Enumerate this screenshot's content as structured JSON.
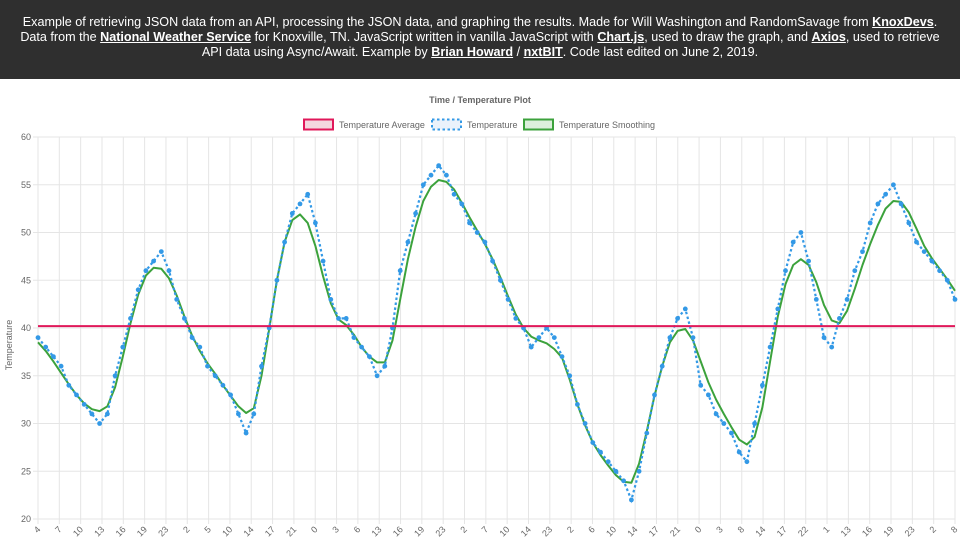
{
  "banner": {
    "t1": "Example of retrieving JSON data from an API, processing the JSON data, and graphing the results. Made for Will Washington and RandomSavage from ",
    "knoxdevs": "KnoxDevs",
    "t2": ". Data from the ",
    "nws": "National Weather Service",
    "t3": " for Knoxville, TN. JavaScript written in vanilla JavaScript with ",
    "chartjs": "Chart.js",
    "t4": ", used to draw the graph, and ",
    "axios": "Axios",
    "t5": ", used to retrieve API data using Async/Await. Example by ",
    "brian": "Brian Howard",
    "sep": " / ",
    "nxtbit": "nxtBIT",
    "t6": ". Code last edited on June 2, 2019."
  },
  "colors": {
    "average": "#e0185a",
    "temperature": "#3399e6",
    "smoothing": "#3ca23c",
    "grid": "#e5e5e5",
    "text": "#666666"
  },
  "chart_data": {
    "type": "line",
    "title": "Time / Temperature Plot",
    "ylabel": "Temperature",
    "xlabel": "",
    "ylim": [
      20,
      60
    ],
    "yticks": [
      20,
      25,
      30,
      35,
      40,
      45,
      50,
      55,
      60
    ],
    "grid": true,
    "legend_position": "top",
    "x_tick_labels": [
      "4",
      "7",
      "10",
      "13",
      "16",
      "19",
      "23",
      "2",
      "5",
      "10",
      "14",
      "17",
      "21",
      "0",
      "3",
      "6",
      "13",
      "16",
      "19",
      "23",
      "2",
      "7",
      "10",
      "14",
      "23",
      "2",
      "6",
      "10",
      "14",
      "17",
      "21",
      "0",
      "3",
      "8",
      "14",
      "17",
      "22",
      "1",
      "13",
      "16",
      "19",
      "23",
      "2",
      "8"
    ],
    "series": [
      {
        "name": "Temperature Average",
        "style": "solid",
        "values": [
          40.2,
          40.2
        ]
      },
      {
        "name": "Temperature",
        "style": "dotted",
        "values": [
          39,
          38,
          37,
          36,
          34,
          33,
          32,
          31,
          30,
          31,
          35,
          38,
          41,
          44,
          46,
          47,
          48,
          46,
          43,
          41,
          39,
          38,
          36,
          35,
          34,
          33,
          31,
          29,
          31,
          36,
          40,
          45,
          49,
          52,
          53,
          54,
          51,
          47,
          43,
          41,
          41,
          39,
          38,
          37,
          35,
          36,
          40,
          46,
          49,
          52,
          55,
          56,
          57,
          56,
          54,
          53,
          51,
          50,
          49,
          47,
          45,
          43,
          41,
          40,
          38,
          39,
          40,
          39,
          37,
          35,
          32,
          30,
          28,
          27,
          26,
          25,
          24,
          22,
          25,
          29,
          33,
          36,
          39,
          41,
          42,
          39,
          34,
          33,
          31,
          30,
          29,
          27,
          26,
          30,
          34,
          38,
          42,
          46,
          49,
          50,
          47,
          43,
          39,
          38,
          41,
          43,
          46,
          48,
          51,
          53,
          54,
          55,
          53,
          51,
          49,
          48,
          47,
          46,
          45,
          43
        ]
      },
      {
        "name": "Temperature Smoothing",
        "style": "solid",
        "values": [
          38.5,
          37.6,
          36.5,
          35.3,
          34.1,
          33.0,
          32.1,
          31.5,
          31.3,
          31.8,
          33.8,
          37.0,
          40.5,
          43.5,
          45.5,
          46.3,
          46.2,
          45.2,
          43.4,
          41.2,
          39.2,
          37.6,
          36.3,
          35.2,
          34.0,
          32.9,
          31.8,
          31.1,
          31.6,
          35.0,
          39.9,
          45.0,
          49.0,
          51.3,
          51.9,
          51.0,
          48.6,
          45.4,
          42.6,
          40.9,
          40.3,
          39.3,
          38.0,
          37.0,
          36.4,
          36.4,
          38.7,
          43.0,
          47.2,
          50.6,
          53.3,
          54.8,
          55.5,
          55.3,
          54.5,
          53.1,
          51.6,
          50.2,
          48.8,
          47.2,
          45.3,
          43.3,
          41.4,
          40.0,
          39.1,
          38.7,
          38.4,
          37.8,
          36.9,
          34.6,
          32.0,
          29.8,
          28.0,
          26.7,
          25.6,
          24.6,
          23.9,
          23.8,
          25.8,
          29.2,
          32.9,
          36.0,
          38.5,
          39.7,
          39.9,
          38.7,
          36.5,
          34.3,
          32.5,
          31.0,
          29.6,
          28.3,
          27.8,
          28.6,
          31.7,
          36.5,
          41.2,
          44.6,
          46.6,
          47.2,
          46.6,
          44.8,
          42.4,
          40.8,
          40.5,
          41.8,
          44.1,
          46.6,
          48.8,
          50.8,
          52.5,
          53.3,
          53.2,
          52.1,
          50.4,
          48.6,
          47.3,
          46.2,
          45.1,
          43.9
        ]
      }
    ]
  }
}
